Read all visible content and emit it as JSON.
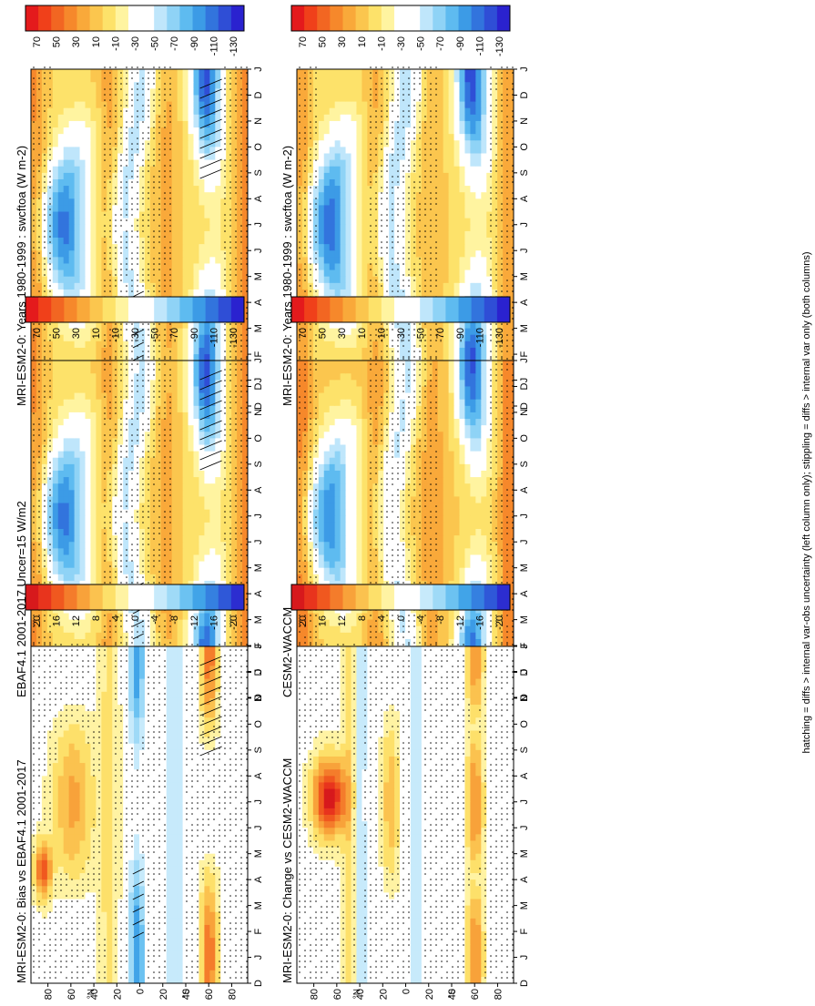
{
  "figure_caption": "hatching = diffs > internal var-obs uncertainty (left column only); stippling = diffs > internal var only (both columns)",
  "colors": {
    "abs_scale": [
      "#e41a1c",
      "#f0401a",
      "#f26622",
      "#f6882b",
      "#f9a93a",
      "#fbc64e",
      "#fde26a",
      "#fff4a0",
      "#ffffff",
      "#ffffff",
      "#bfe6fb",
      "#8fd3f6",
      "#5ebbf0",
      "#3c9be6",
      "#3274dd",
      "#2f4ed6",
      "#2a22cf"
    ],
    "diff_scale": [
      "#d7191c",
      "#e8341d",
      "#f0581f",
      "#f47c2b",
      "#f8a23a",
      "#fbc24f",
      "#fde06a",
      "#fff3a3",
      "#ffffff",
      "#ffffff",
      "#c7eafb",
      "#9fdaf7",
      "#6cc2f1",
      "#41a4e8",
      "#3580e0",
      "#2f58d8",
      "#2c2dd0"
    ]
  },
  "chart_data": [
    {
      "type": "heatmap",
      "title": "MRI-ESM2-0: Years 1980-1999 : swcftoa (W m-2)",
      "x_tick_labels": [
        "D",
        "J",
        "F",
        "M",
        "A",
        "M",
        "J",
        "J",
        "A",
        "S",
        "O",
        "N",
        "D",
        "J"
      ],
      "y_tick_labels": [
        "80",
        "60",
        "40",
        "20",
        "0",
        "20",
        "40",
        "60",
        "80"
      ],
      "y_hemisphere_labels": [
        "°N",
        "°S"
      ],
      "colorbar_labels": [
        "70",
        "50",
        "30",
        "10",
        "-10",
        "-30",
        "-50",
        "-70",
        "-90",
        "-110",
        "-130"
      ],
      "value_range": [
        -140,
        80
      ],
      "hatching": true,
      "stippling": true
    },
    {
      "type": "heatmap",
      "title": "MRI-ESM2-0: Years 1980-1999 : swcftoa (W m-2)",
      "x_tick_labels": [
        "D",
        "J",
        "F",
        "M",
        "A",
        "M",
        "J",
        "J",
        "A",
        "S",
        "O",
        "N",
        "D",
        "J"
      ],
      "y_tick_labels": [
        "80",
        "60",
        "40",
        "20",
        "0",
        "20",
        "40",
        "60",
        "80"
      ],
      "y_hemisphere_labels": [
        "°N",
        "°S"
      ],
      "colorbar_labels": [
        "70",
        "50",
        "30",
        "10",
        "-10",
        "-30",
        "-50",
        "-70",
        "-90",
        "-110",
        "-130"
      ],
      "value_range": [
        -140,
        80
      ],
      "hatching": false,
      "stippling": true
    },
    {
      "type": "heatmap",
      "title": "EBAF4.1 2001-2017 Uncer=15 W/m2",
      "x_tick_labels": [
        "D",
        "J",
        "F",
        "M",
        "A",
        "M",
        "J",
        "J",
        "A",
        "S",
        "O",
        "N",
        "D",
        "J"
      ],
      "y_tick_labels": [
        "80",
        "60",
        "40",
        "20",
        "0",
        "20",
        "40",
        "60",
        "80"
      ],
      "y_hemisphere_labels": [
        "°N",
        "°S"
      ],
      "colorbar_labels": [
        "70",
        "50",
        "30",
        "10",
        "-10",
        "-30",
        "-50",
        "-70",
        "-90",
        "-110",
        "-130"
      ],
      "value_range": [
        -140,
        80
      ],
      "hatching": true,
      "stippling": true
    },
    {
      "type": "heatmap",
      "title": "CESM2-WACCM",
      "x_tick_labels": [
        "D",
        "J",
        "F",
        "M",
        "A",
        "M",
        "J",
        "J",
        "A",
        "S",
        "O",
        "N",
        "D",
        "J"
      ],
      "y_tick_labels": [
        "80",
        "60",
        "40",
        "20",
        "0",
        "20",
        "40",
        "60",
        "80"
      ],
      "y_hemisphere_labels": [
        "°N",
        "°S"
      ],
      "colorbar_labels": [
        "70",
        "50",
        "30",
        "10",
        "-10",
        "-30",
        "-50",
        "-70",
        "-90",
        "-110",
        "-130"
      ],
      "value_range": [
        -140,
        80
      ],
      "hatching": false,
      "stippling": true
    },
    {
      "type": "heatmap",
      "title": "MRI-ESM2-0: Bias vs EBAF4.1 2001-2017",
      "x_tick_labels": [
        "D",
        "J",
        "F",
        "M",
        "A",
        "M",
        "J",
        "J",
        "A",
        "S",
        "O",
        "N",
        "D",
        "J"
      ],
      "y_tick_labels": [
        "80",
        "60",
        "40",
        "20",
        "0",
        "20",
        "40",
        "60",
        "80"
      ],
      "y_hemisphere_labels": [
        "°N",
        "°S"
      ],
      "colorbar_labels": [
        "20",
        "16",
        "12",
        "8",
        "4",
        "0",
        "-4",
        "-8",
        "-12",
        "-16",
        "-20"
      ],
      "value_range": [
        -22,
        22
      ],
      "hatching": true,
      "stippling": true
    },
    {
      "type": "heatmap",
      "title": "MRI-ESM2-0: Change vs CESM2-WACCM",
      "x_tick_labels": [
        "D",
        "J",
        "F",
        "M",
        "A",
        "M",
        "J",
        "J",
        "A",
        "S",
        "O",
        "N",
        "D",
        "J"
      ],
      "y_tick_labels": [
        "80",
        "60",
        "40",
        "20",
        "0",
        "20",
        "40",
        "60",
        "80"
      ],
      "y_hemisphere_labels": [
        "°N",
        "°S"
      ],
      "colorbar_labels": [
        "20",
        "16",
        "12",
        "8",
        "4",
        "0",
        "-4",
        "-8",
        "-12",
        "-16",
        "-20"
      ],
      "value_range": [
        -22,
        22
      ],
      "hatching": false,
      "stippling": true
    }
  ]
}
